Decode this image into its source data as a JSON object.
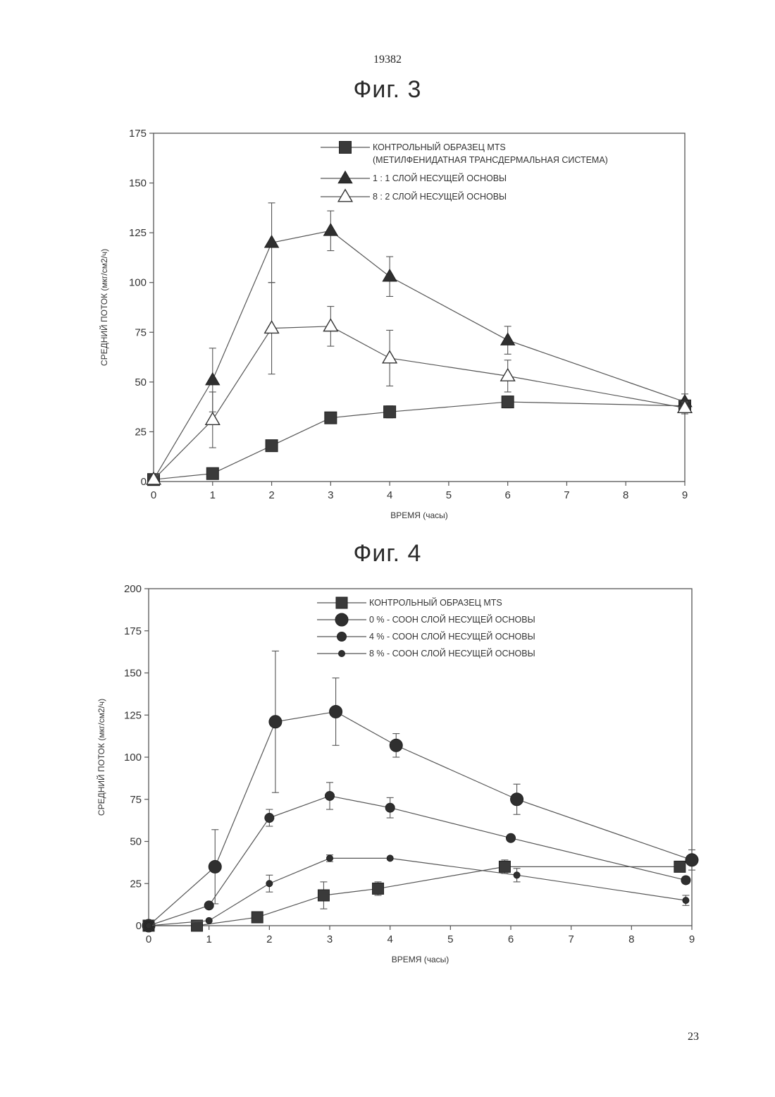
{
  "page": {
    "top_number": "19382",
    "bottom_number": "23"
  },
  "chart_data": [
    {
      "type": "line",
      "title": "Фиг. 3",
      "xlabel": "ВРЕМЯ (часы)",
      "ylabel": "СРЕДНИЙ ПОТОК (мкг/см2/ч)",
      "xlim": [
        0,
        9
      ],
      "ylim": [
        0,
        175
      ],
      "xticks": [
        0,
        1,
        2,
        3,
        4,
        5,
        6,
        7,
        8,
        9
      ],
      "yticks": [
        0,
        25,
        50,
        75,
        100,
        125,
        150,
        175
      ],
      "legend_position": "top-right",
      "series": [
        {
          "name": "КОНТРОЛЬНЫЙ ОБРАЗЕЦ MTS (МЕТИЛФЕНИДАТНАЯ ТРАНСДЕРМАЛЬНАЯ СИСТЕМА)",
          "legend_lines": [
            "КОНТРОЛЬНЫЙ ОБРАЗЕЦ MTS",
            "(МЕТИЛФЕНИДАТНАЯ ТРАНСДЕРМАЛЬНАЯ СИСТЕМА)"
          ],
          "marker": "square-filled",
          "x": [
            0,
            1,
            2,
            3,
            4,
            6,
            9
          ],
          "y": [
            1,
            4,
            18,
            32,
            35,
            40,
            38
          ],
          "err": [
            0,
            0,
            0,
            0,
            3,
            3,
            2
          ]
        },
        {
          "name": "1 : 1 СЛОЙ НЕСУЩЕЙ ОСНОВЫ",
          "legend_lines": [
            "1 : 1 СЛОЙ НЕСУЩЕЙ ОСНОВЫ"
          ],
          "marker": "triangle-filled",
          "x": [
            0,
            1,
            2,
            3,
            4,
            6,
            9
          ],
          "y": [
            1,
            51,
            120,
            126,
            103,
            71,
            40
          ],
          "err": [
            0,
            16,
            20,
            10,
            10,
            7,
            4
          ]
        },
        {
          "name": "8 : 2 СЛОЙ НЕСУЩЕЙ ОСНОВЫ",
          "legend_lines": [
            "8 : 2 СЛОЙ НЕСУЩЕЙ ОСНОВЫ"
          ],
          "marker": "triangle-open",
          "x": [
            0,
            1,
            2,
            3,
            4,
            6,
            9
          ],
          "y": [
            1,
            31,
            77,
            78,
            62,
            53,
            37
          ],
          "err": [
            0,
            14,
            23,
            10,
            14,
            8,
            3
          ]
        }
      ]
    },
    {
      "type": "line",
      "title": "Фиг. 4",
      "xlabel": "ВРЕМЯ (часы)",
      "ylabel": "СРЕДНИЙ ПОТОК (мкг/см2/ч)",
      "xlim": [
        0,
        9
      ],
      "ylim": [
        0,
        200
      ],
      "xticks": [
        0,
        1,
        2,
        3,
        4,
        5,
        6,
        7,
        8,
        9
      ],
      "yticks": [
        0,
        25,
        50,
        75,
        100,
        125,
        150,
        175,
        200
      ],
      "legend_position": "top-right",
      "series": [
        {
          "name": "КОНТРОЛЬНЫЙ ОБРАЗЕЦ MTS",
          "legend_lines": [
            "КОНТРОЛЬНЫЙ ОБРАЗЕЦ MTS"
          ],
          "marker": "square-filled",
          "marker_size": 16,
          "x": [
            0,
            0.8,
            1.8,
            2.9,
            3.8,
            5.9,
            8.8
          ],
          "y": [
            0,
            0,
            5,
            18,
            22,
            35,
            35
          ],
          "err": [
            0,
            0,
            3,
            8,
            4,
            4,
            2
          ]
        },
        {
          "name": "0 % - СООН СЛОЙ НЕСУЩЕЙ ОСНОВЫ",
          "legend_lines": [
            "0 % - СООН СЛОЙ НЕСУЩЕЙ ОСНОВЫ"
          ],
          "marker": "circle-filled",
          "marker_size": 18,
          "x": [
            0,
            1.1,
            2.1,
            3.1,
            4.1,
            6.1,
            9
          ],
          "y": [
            0,
            35,
            121,
            127,
            107,
            75,
            39
          ],
          "err": [
            0,
            22,
            42,
            20,
            7,
            9,
            6
          ]
        },
        {
          "name": "4 % - СООН СЛОЙ НЕСУЩЕЙ ОСНОВЫ",
          "legend_lines": [
            "4 % - СООН СЛОЙ НЕСУЩЕЙ ОСНОВЫ"
          ],
          "marker": "circle-filled",
          "marker_size": 13,
          "x": [
            0,
            1,
            2,
            3,
            4,
            6,
            8.9
          ],
          "y": [
            0,
            12,
            64,
            77,
            70,
            52,
            27
          ],
          "err": [
            0,
            0,
            5,
            8,
            6,
            0,
            2
          ]
        },
        {
          "name": "8 % - СООН СЛОЙ НЕСУЩЕЙ ОСНОВЫ",
          "legend_lines": [
            "8 % - СООН СЛОЙ НЕСУЩЕЙ ОСНОВЫ"
          ],
          "marker": "circle-filled",
          "marker_size": 9,
          "x": [
            0,
            1,
            2,
            3,
            4,
            6.1,
            8.9
          ],
          "y": [
            0,
            3,
            25,
            40,
            40,
            30,
            15
          ],
          "err": [
            0,
            0,
            5,
            2,
            0,
            4,
            3
          ]
        }
      ]
    }
  ]
}
